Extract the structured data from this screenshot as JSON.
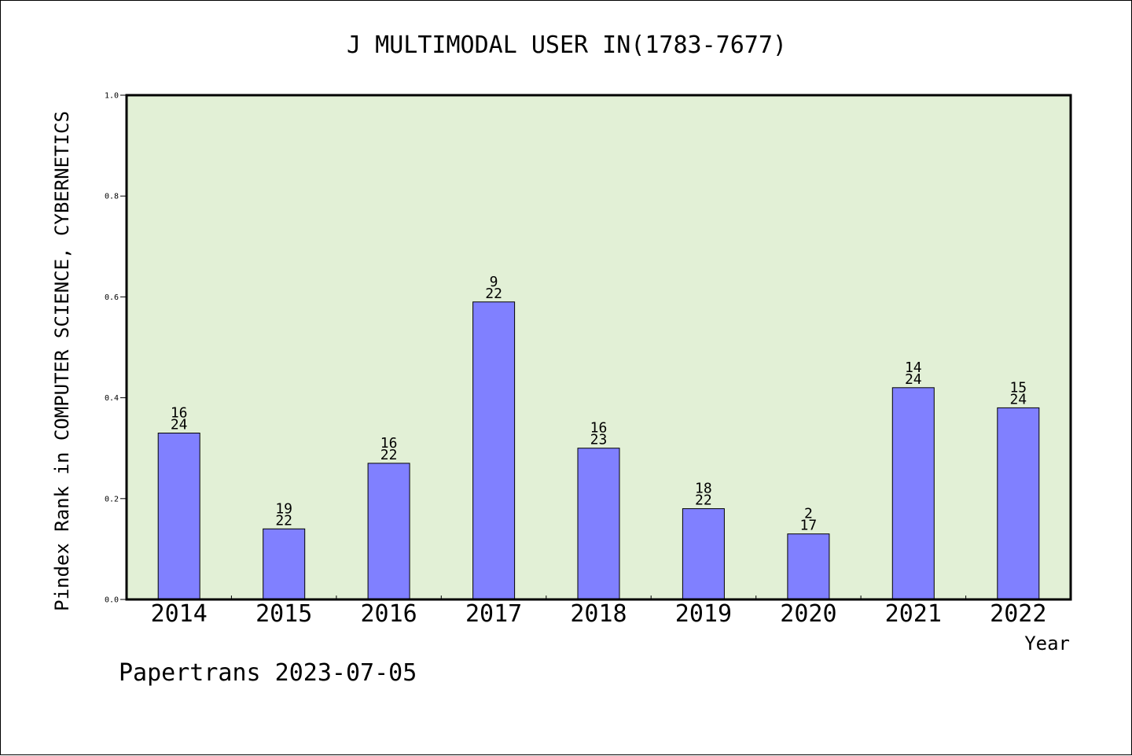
{
  "chart_data": {
    "type": "bar",
    "title": "J MULTIMODAL USER IN(1783-7677)",
    "xlabel": "Year",
    "ylabel": "Pindex Rank in COMPUTER SCIENCE, CYBERNETICS",
    "categories": [
      "2014",
      "2015",
      "2016",
      "2017",
      "2018",
      "2019",
      "2020",
      "2021",
      "2022"
    ],
    "values": [
      0.33,
      0.14,
      0.27,
      0.59,
      0.3,
      0.18,
      0.13,
      0.42,
      0.38
    ],
    "rank": [
      "16",
      "19",
      "16",
      "9",
      "16",
      "18",
      "2",
      "14",
      "15"
    ],
    "total": [
      "24",
      "22",
      "22",
      "22",
      "23",
      "22",
      "17",
      "24",
      "24"
    ],
    "ylim": [
      0,
      1.0
    ],
    "yticks": [
      "0.0",
      "0.2",
      "0.4",
      "0.6",
      "0.8",
      "1.0"
    ],
    "grid": false,
    "legend": "none",
    "colors": {
      "plot_background": "#e2f0d6",
      "bar_fill": "#8080ff",
      "bar_stroke": "#000000",
      "axis": "#000000"
    }
  },
  "footer": {
    "text": "Papertrans 2023-07-05"
  }
}
